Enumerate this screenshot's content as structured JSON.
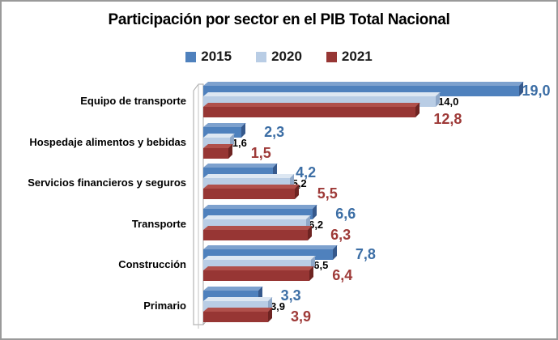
{
  "title": "Participación por sector en el PIB Total Nacional",
  "legend": [
    {
      "label": "2015",
      "color": "#4F81BD"
    },
    {
      "label": "2020",
      "color": "#B9CDE5"
    },
    {
      "label": "2021",
      "color": "#973634"
    }
  ],
  "colors": {
    "blue_front": "#4F81BD",
    "blue_top": "#7DA1CE",
    "blue_side": "#36598C",
    "blue_label": "#3C6EA5",
    "lightblue_front": "#B9CDE5",
    "lightblue_top": "#DDE7F2",
    "lightblue_side": "#8FA8C8",
    "red_front": "#973634",
    "red_top": "#B0504B",
    "red_side": "#6E2422",
    "red_label": "#9E3A38",
    "border": "#9A9A9A",
    "wall_stroke": "#A6A6A6",
    "background": "#FFFFFF"
  },
  "chart_data": {
    "type": "bar",
    "orientation": "horizontal",
    "title": "Participación por sector en el PIB Total Nacional",
    "xlabel": "",
    "ylabel": "",
    "xlim": [
      0,
      20
    ],
    "grid": false,
    "legend_position": "top",
    "value_labels_shown": true,
    "decimal_separator": ",",
    "categories": [
      "Equipo de transporte",
      "Hospedaje alimentos y bebidas",
      "Servicios financieros y seguros",
      "Transporte",
      "Construcción",
      "Primario"
    ],
    "series": [
      {
        "name": "2015",
        "values": [
          19.0,
          2.3,
          4.2,
          6.6,
          7.8,
          3.3
        ],
        "labels": [
          "19,0",
          "2,3",
          "4,2",
          "6,6",
          "7,8",
          "3,3"
        ]
      },
      {
        "name": "2020",
        "values": [
          14.0,
          1.6,
          5.2,
          6.2,
          6.5,
          3.9
        ],
        "labels": [
          "14,0",
          "1,6",
          "5,2",
          "6,2",
          "6,5",
          "3,9"
        ]
      },
      {
        "name": "2021",
        "values": [
          12.8,
          1.5,
          5.5,
          6.3,
          6.4,
          3.9
        ],
        "labels": [
          "12,8",
          "1,5",
          "5,5",
          "6,3",
          "6,4",
          "3,9"
        ]
      }
    ]
  }
}
